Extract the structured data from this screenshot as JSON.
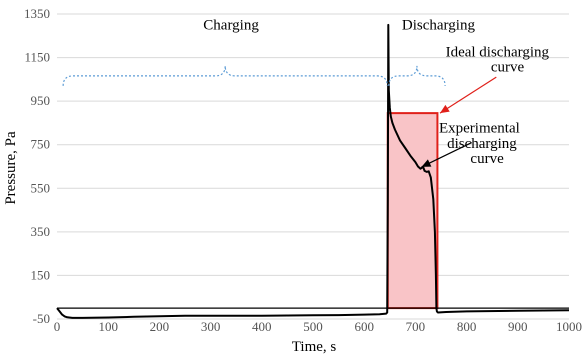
{
  "chart_data": {
    "type": "line",
    "title": "",
    "xlabel": "Time, s",
    "ylabel": "Pressure, Pa",
    "xlim": [
      0,
      1000
    ],
    "ylim": [
      -50,
      1350
    ],
    "x_ticks": [
      0,
      100,
      200,
      300,
      400,
      500,
      600,
      700,
      800,
      900,
      1000
    ],
    "y_ticks": [
      -50,
      150,
      350,
      550,
      750,
      950,
      1150,
      1350
    ],
    "grid": "horizontal",
    "legend": "none",
    "series": [
      {
        "name": "",
        "color": "#000000",
        "points": [
          [
            0,
            0
          ],
          [
            5,
            -15
          ],
          [
            10,
            -30
          ],
          [
            15,
            -38
          ],
          [
            20,
            -42
          ],
          [
            30,
            -45
          ],
          [
            50,
            -45
          ],
          [
            100,
            -43
          ],
          [
            150,
            -40
          ],
          [
            200,
            -37
          ],
          [
            250,
            -35
          ],
          [
            300,
            -35
          ],
          [
            350,
            -35
          ],
          [
            400,
            -35
          ],
          [
            450,
            -34
          ],
          [
            500,
            -33
          ],
          [
            550,
            -32
          ],
          [
            600,
            -30
          ],
          [
            630,
            -28
          ],
          [
            643,
            -25
          ],
          [
            645,
            -20
          ],
          [
            646,
            500
          ],
          [
            647,
            1300
          ],
          [
            648,
            1000
          ],
          [
            650,
            920
          ],
          [
            652,
            880
          ],
          [
            655,
            850
          ],
          [
            660,
            820
          ],
          [
            670,
            770
          ],
          [
            680,
            735
          ],
          [
            690,
            700
          ],
          [
            700,
            670
          ],
          [
            705,
            650
          ],
          [
            710,
            640
          ],
          [
            715,
            648
          ],
          [
            718,
            630
          ],
          [
            722,
            625
          ],
          [
            726,
            628
          ],
          [
            730,
            600
          ],
          [
            735,
            500
          ],
          [
            738,
            350
          ],
          [
            740,
            150
          ],
          [
            741,
            0
          ],
          [
            742,
            -15
          ],
          [
            744,
            -20
          ],
          [
            760,
            -18
          ],
          [
            800,
            -15
          ],
          [
            900,
            -12
          ],
          [
            1000,
            -10
          ]
        ]
      },
      {
        "name": "",
        "color": "#000000",
        "points": [
          [
            0,
            0
          ],
          [
            1000,
            0
          ]
        ]
      }
    ],
    "ideal_discharge_rect": {
      "x": [
        646,
        743
      ],
      "y": [
        0,
        895
      ],
      "fill": "#F9C4C7",
      "stroke": "#E0201A"
    },
    "annotations": [
      {
        "text": "Charging",
        "x": 340,
        "y": 1280
      },
      {
        "text": "Discharging",
        "x": 745,
        "y": 1280
      },
      {
        "text": "Ideal discharging",
        "x": 860,
        "y": 1155
      },
      {
        "text": "curve",
        "x": 880,
        "y": 1085
      },
      {
        "text": "Experimental",
        "x": 825,
        "y": 805
      },
      {
        "text": "discharging",
        "x": 830,
        "y": 735
      },
      {
        "text": "curve",
        "x": 840,
        "y": 665
      }
    ],
    "braces": [
      {
        "label": "Charging",
        "x": [
          12,
          645
        ],
        "y": 1020,
        "color": "#5B9BD5"
      },
      {
        "label": "Discharging",
        "x": [
          648,
          758
        ],
        "y": 1020,
        "color": "#5B9BD5"
      }
    ],
    "arrows": [
      {
        "from": [
          858,
          1060
        ],
        "to": [
          748,
          895
        ],
        "color": "#E0201A"
      },
      {
        "from": [
          810,
          760
        ],
        "to": [
          712,
          648
        ],
        "color": "#000000"
      }
    ]
  }
}
